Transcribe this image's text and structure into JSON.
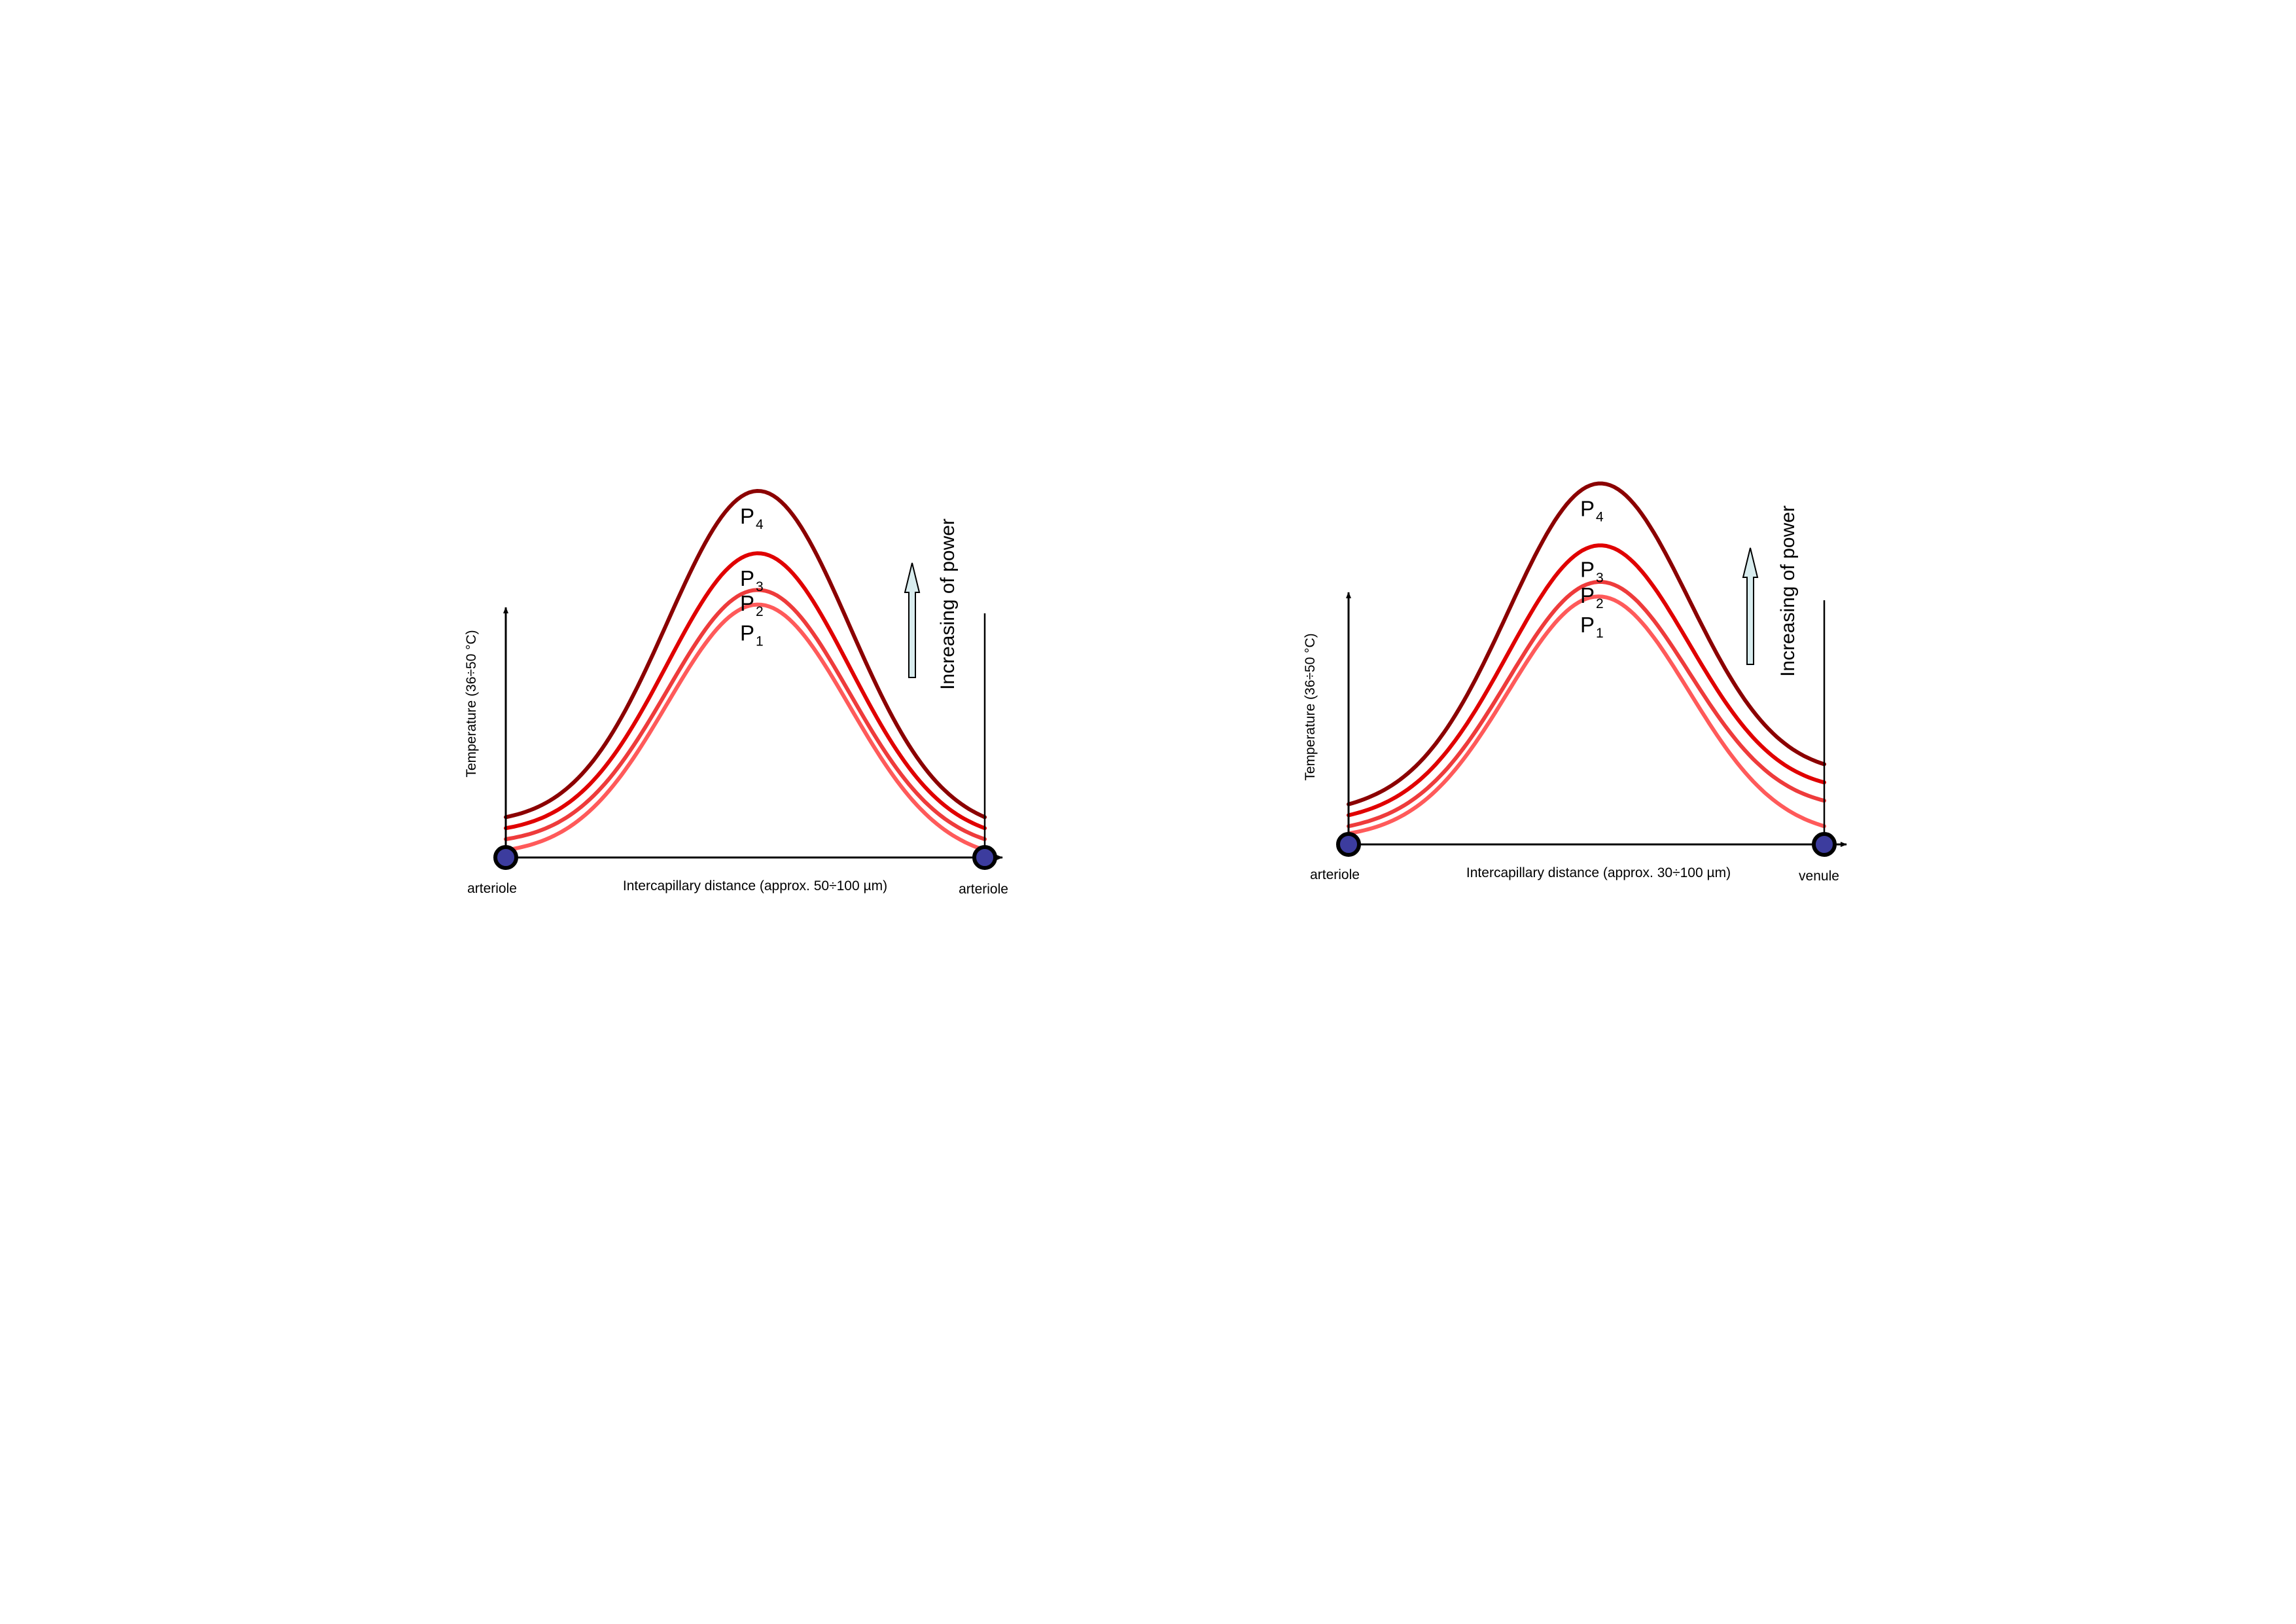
{
  "colors": {
    "P1": "#ff5a5a",
    "P2": "#ee3b3b",
    "P3": "#e00000",
    "P4": "#8b0000",
    "vessel": "#3c3c9e",
    "arrow": "#d8ecee"
  },
  "chart_data": [
    {
      "type": "line",
      "ylabel": "Temperature (36÷50 °C)",
      "xlabel": "Intercapillary distance (approx. 50÷100 µm)",
      "left_end_label": "arteriole",
      "right_end_label": "arteriole",
      "arrow_label": "Increasing of power",
      "series": [
        {
          "name": "P",
          "sub": "1",
          "color_key": "P1",
          "end_left": 0.02,
          "peak": 0.69,
          "end_right": 0.02
        },
        {
          "name": "P",
          "sub": "2",
          "color_key": "P2",
          "end_left": 0.05,
          "peak": 0.73,
          "end_right": 0.05
        },
        {
          "name": "P",
          "sub": "3",
          "color_key": "P3",
          "end_left": 0.08,
          "peak": 0.83,
          "end_right": 0.08
        },
        {
          "name": "P",
          "sub": "4",
          "color_key": "P4",
          "end_left": 0.11,
          "peak": 1.0,
          "end_right": 0.11
        }
      ]
    },
    {
      "type": "line",
      "ylabel": "Temperature (36÷50 °C)",
      "xlabel": "Intercapillary distance (approx. 30÷100 µm)",
      "left_end_label": "arteriole",
      "right_end_label": "venule",
      "arrow_label": "Increasing of power",
      "series": [
        {
          "name": "P",
          "sub": "1",
          "color_key": "P1",
          "end_left": 0.03,
          "peak": 0.68,
          "end_right": 0.05
        },
        {
          "name": "P",
          "sub": "2",
          "color_key": "P2",
          "end_left": 0.05,
          "peak": 0.72,
          "end_right": 0.12
        },
        {
          "name": "P",
          "sub": "3",
          "color_key": "P3",
          "end_left": 0.08,
          "peak": 0.82,
          "end_right": 0.17
        },
        {
          "name": "P",
          "sub": "4",
          "color_key": "P4",
          "end_left": 0.11,
          "peak": 0.99,
          "end_right": 0.22
        }
      ]
    }
  ]
}
